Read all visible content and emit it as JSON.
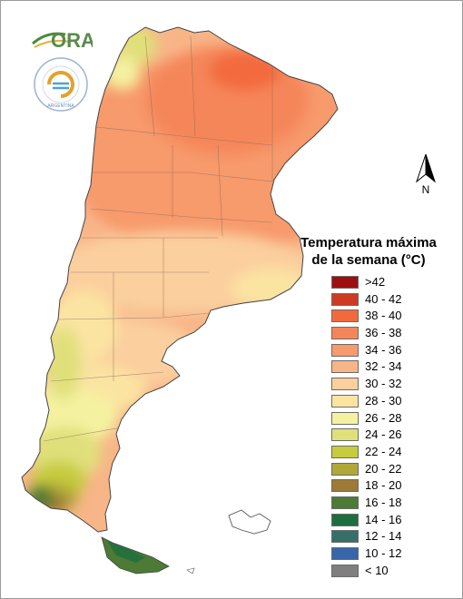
{
  "map": {
    "logo_text": "ORA",
    "seal_text": "INSTITUTO METEOROLÓGICO NACIONAL ARGENTINA",
    "north_label": "N",
    "legend_title": "Temperatura máxima\nde la semana (°C)",
    "legend": [
      {
        "label": ">42",
        "color": "#9e0f0f"
      },
      {
        "label": "40 - 42",
        "color": "#cd3b22"
      },
      {
        "label": "38 - 40",
        "color": "#f26a3c"
      },
      {
        "label": "36 - 38",
        "color": "#f5865a"
      },
      {
        "label": "34 - 36",
        "color": "#f79a6c"
      },
      {
        "label": "32 - 34",
        "color": "#f8b588"
      },
      {
        "label": "30 - 32",
        "color": "#fbcf9e"
      },
      {
        "label": "28 - 30",
        "color": "#fbe4a2"
      },
      {
        "label": "26 - 28",
        "color": "#f4f2a0"
      },
      {
        "label": "24 - 26",
        "color": "#e0e07a"
      },
      {
        "label": "22 - 24",
        "color": "#c6cc3e"
      },
      {
        "label": "20 - 22",
        "color": "#b0a83a"
      },
      {
        "label": "18 - 20",
        "color": "#9d7a35"
      },
      {
        "label": "16 - 18",
        "color": "#4d7a35"
      },
      {
        "label": "14 - 16",
        "color": "#1d6e3e"
      },
      {
        "label": "12 - 14",
        "color": "#347068"
      },
      {
        "label": "10 - 12",
        "color": "#3866a8"
      },
      {
        "label": "< 10",
        "color": "#7f7f7f"
      }
    ]
  }
}
